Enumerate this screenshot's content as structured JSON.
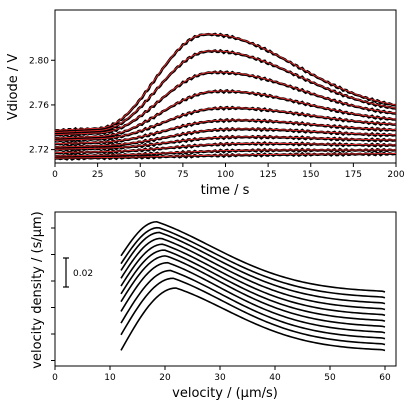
{
  "chart_data": [
    {
      "type": "line",
      "xlabel": "time / s",
      "ylabel": "Vdiode / V",
      "xlim": [
        0,
        200
      ],
      "ylim": [
        2.708,
        2.845
      ],
      "x_ticks": [
        0,
        25,
        50,
        75,
        100,
        125,
        150,
        175,
        200
      ],
      "y_ticks": [
        2.72,
        2.76,
        2.8
      ],
      "y_tick_labels": [
        "2.72",
        "2.76",
        "2.80"
      ],
      "grid": false,
      "colors": {
        "measured": "#000000",
        "fit": "#d62728"
      },
      "series": [
        {
          "baseline_start": 2.737,
          "baseline_end": 2.751,
          "peak": 2.823,
          "peak_t": 88
        },
        {
          "baseline_start": 2.735,
          "baseline_end": 2.749,
          "peak": 2.808,
          "peak_t": 90
        },
        {
          "baseline_start": 2.733,
          "baseline_end": 2.746,
          "peak": 2.789,
          "peak_t": 92
        },
        {
          "baseline_start": 2.73,
          "baseline_end": 2.742,
          "peak": 2.772,
          "peak_t": 94
        },
        {
          "baseline_start": 2.728,
          "baseline_end": 2.739,
          "peak": 2.757,
          "peak_t": 96
        },
        {
          "baseline_start": 2.725,
          "baseline_end": 2.735,
          "peak": 2.746,
          "peak_t": 98
        },
        {
          "baseline_start": 2.722,
          "baseline_end": 2.731,
          "peak": 2.738,
          "peak_t": 100
        },
        {
          "baseline_start": 2.72,
          "baseline_end": 2.727,
          "peak": 2.731,
          "peak_t": 102
        },
        {
          "baseline_start": 2.717,
          "baseline_end": 2.723,
          "peak": 2.725,
          "peak_t": 104
        },
        {
          "baseline_start": 2.714,
          "baseline_end": 2.719,
          "peak": 2.719,
          "peak_t": 106
        },
        {
          "baseline_start": 2.712,
          "baseline_end": 2.716,
          "peak": 2.715,
          "peak_t": 108
        }
      ]
    },
    {
      "type": "line",
      "xlabel": "velocity / (μm/s)",
      "ylabel": "velocity density / (s/μm)",
      "xlim": [
        0,
        62
      ],
      "x_ticks": [
        0,
        10,
        20,
        30,
        40,
        50,
        60
      ],
      "y_tick_count": 6,
      "scale_bar_label": "0.02",
      "scale_bar_value": 0.02,
      "grid": false,
      "x_start": 12,
      "x_end": 60,
      "series": [
        {
          "mode": 18.5,
          "start": 0.0585,
          "peak": 0.076,
          "end": 0.04
        },
        {
          "mode": 18.8,
          "start": 0.0545,
          "peak": 0.073,
          "end": 0.037
        },
        {
          "mode": 19.0,
          "start": 0.051,
          "peak": 0.0705,
          "end": 0.034
        },
        {
          "mode": 19.3,
          "start": 0.047,
          "peak": 0.0675,
          "end": 0.031
        },
        {
          "mode": 19.6,
          "start": 0.043,
          "peak": 0.0645,
          "end": 0.028
        },
        {
          "mode": 19.9,
          "start": 0.039,
          "peak": 0.0615,
          "end": 0.025
        },
        {
          "mode": 20.2,
          "start": 0.035,
          "peak": 0.0585,
          "end": 0.022
        },
        {
          "mode": 20.5,
          "start": 0.03,
          "peak": 0.055,
          "end": 0.019
        },
        {
          "mode": 21.0,
          "start": 0.024,
          "peak": 0.051,
          "end": 0.016
        },
        {
          "mode": 21.5,
          "start": 0.018,
          "peak": 0.047,
          "end": 0.013
        },
        {
          "mode": 22.0,
          "start": 0.01,
          "peak": 0.042,
          "end": 0.01
        }
      ]
    }
  ]
}
